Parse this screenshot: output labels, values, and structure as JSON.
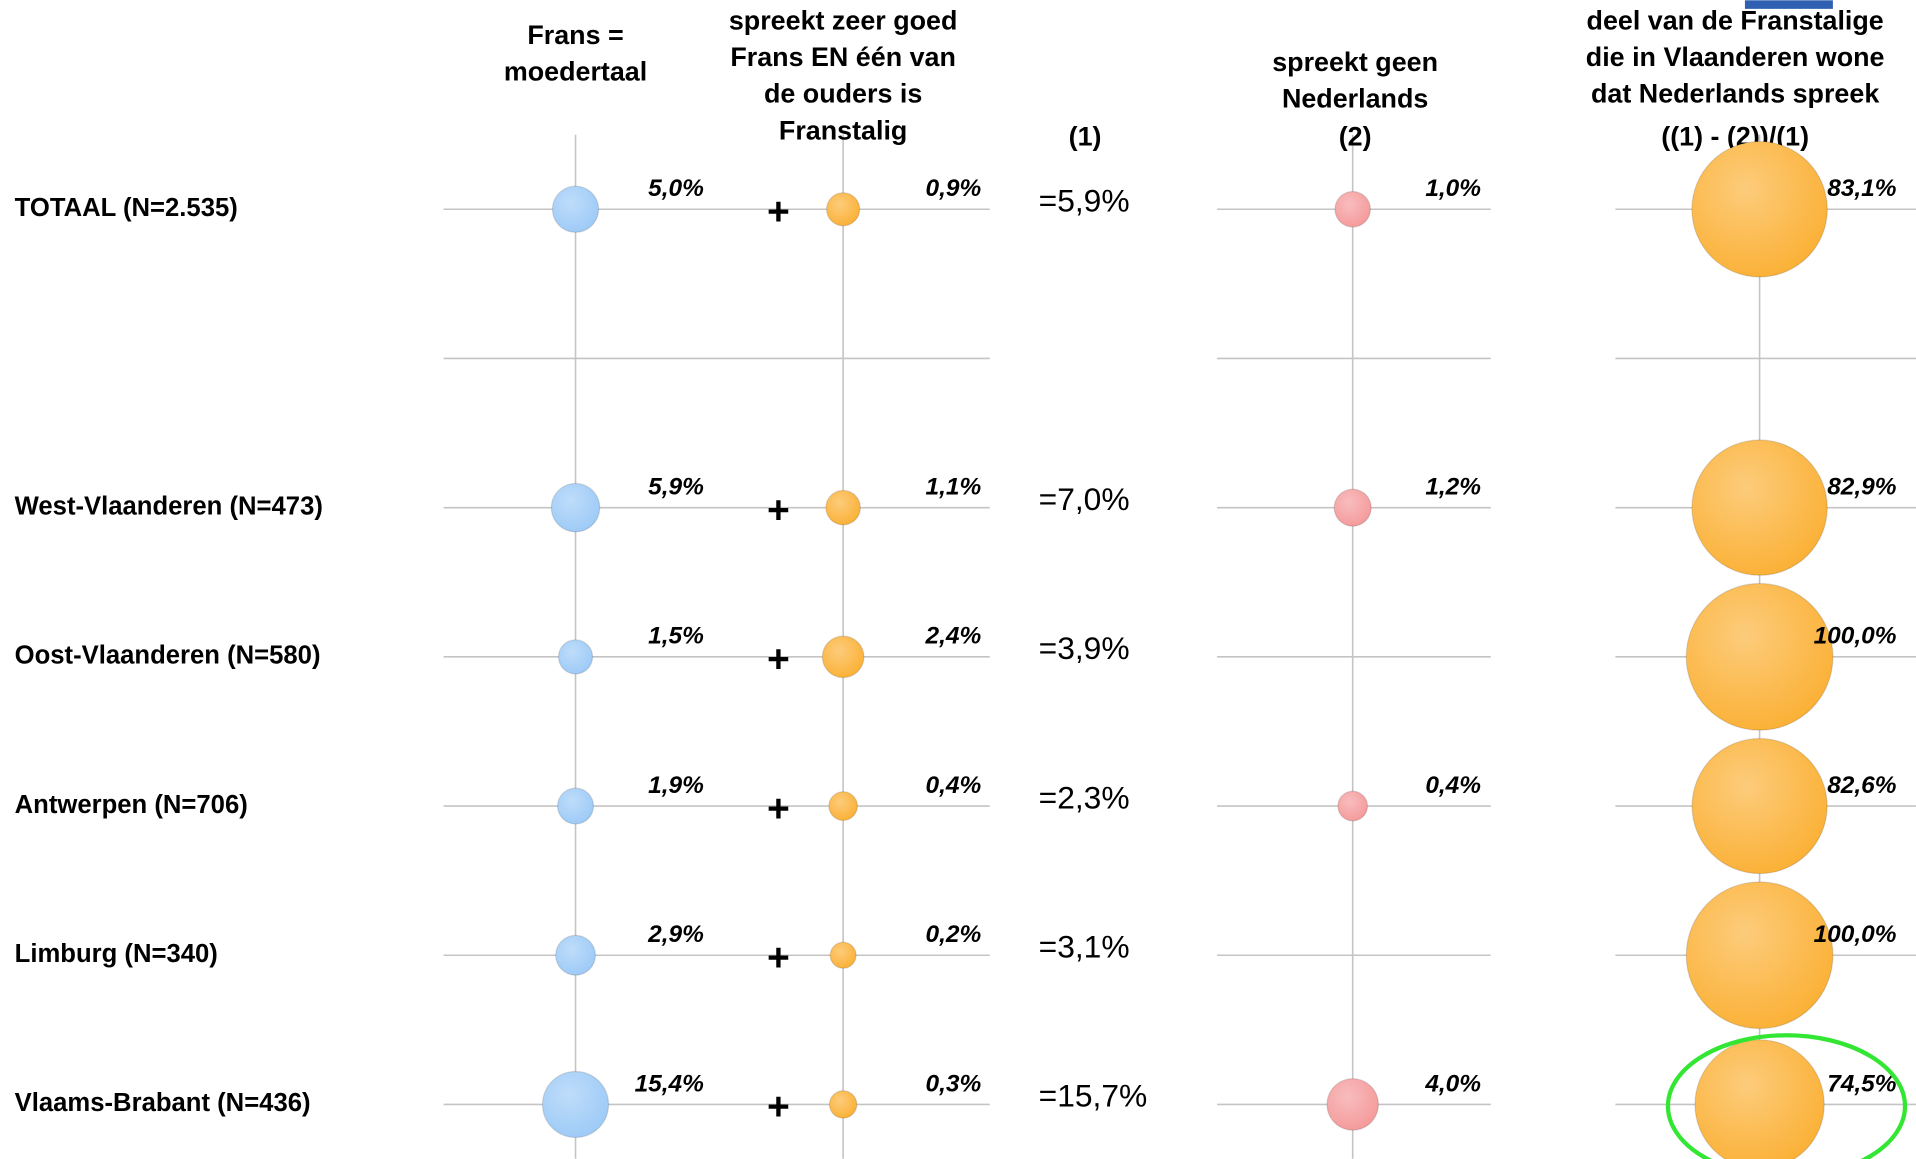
{
  "chart_data": {
    "type": "bubble",
    "operator": "+",
    "categories": [
      "TOTAAL (N=2.535)",
      null,
      "West-Vlaanderen (N=473)",
      "Oost-Vlaanderen (N=580)",
      "Antwerpen (N=706)",
      "Limburg (N=340)",
      "Vlaams-Brabant (N=436)"
    ],
    "series": [
      {
        "name": "Frans =\nmoedertaal",
        "style": "bubble",
        "color": "#9ccaf7",
        "values": [
          5.0,
          null,
          5.9,
          1.5,
          1.9,
          2.9,
          15.4
        ],
        "value_labels": [
          "5,0%",
          null,
          "5,9%",
          "1,5%",
          "1,9%",
          "2,9%",
          "15,4%"
        ]
      },
      {
        "name": "spreekt zeer goed\nFrans EN één van\nde ouders is\nFranstalig",
        "style": "bubble",
        "color": "#fbb034",
        "values": [
          0.9,
          null,
          1.1,
          2.4,
          0.4,
          0.2,
          0.3
        ],
        "value_labels": [
          "0,9%",
          null,
          "1,1%",
          "2,4%",
          "0,4%",
          "0,2%",
          "0,3%"
        ]
      },
      {
        "name": "(1)",
        "style": "text",
        "color": "#000000",
        "values": [
          5.9,
          null,
          7.0,
          3.9,
          2.3,
          3.1,
          15.7
        ],
        "value_labels": [
          "=5,9%",
          null,
          "=7,0%",
          "=3,9%",
          "=2,3%",
          "=3,1%",
          "=15,7%"
        ]
      },
      {
        "name": "spreekt geen\nNederlands\n(2)",
        "style": "bubble",
        "color": "#f5999a",
        "values": [
          1.0,
          null,
          1.2,
          null,
          0.4,
          null,
          4.0
        ],
        "value_labels": [
          "1,0%",
          null,
          "1,2%",
          null,
          "0,4%",
          null,
          "4,0%"
        ]
      },
      {
        "name": "deel van de Franstalige\ndie in Vlaanderen wone\ndat Nederlands spreek\n((1) - (2))/(1)",
        "style": "bubble",
        "color": "#fbb034",
        "values": [
          83.1,
          null,
          82.9,
          100.0,
          82.6,
          100.0,
          74.5
        ],
        "value_labels": [
          "83,1%",
          null,
          "82,9%",
          "100,0%",
          "82,6%",
          "100,0%",
          "74,5%"
        ]
      }
    ]
  }
}
